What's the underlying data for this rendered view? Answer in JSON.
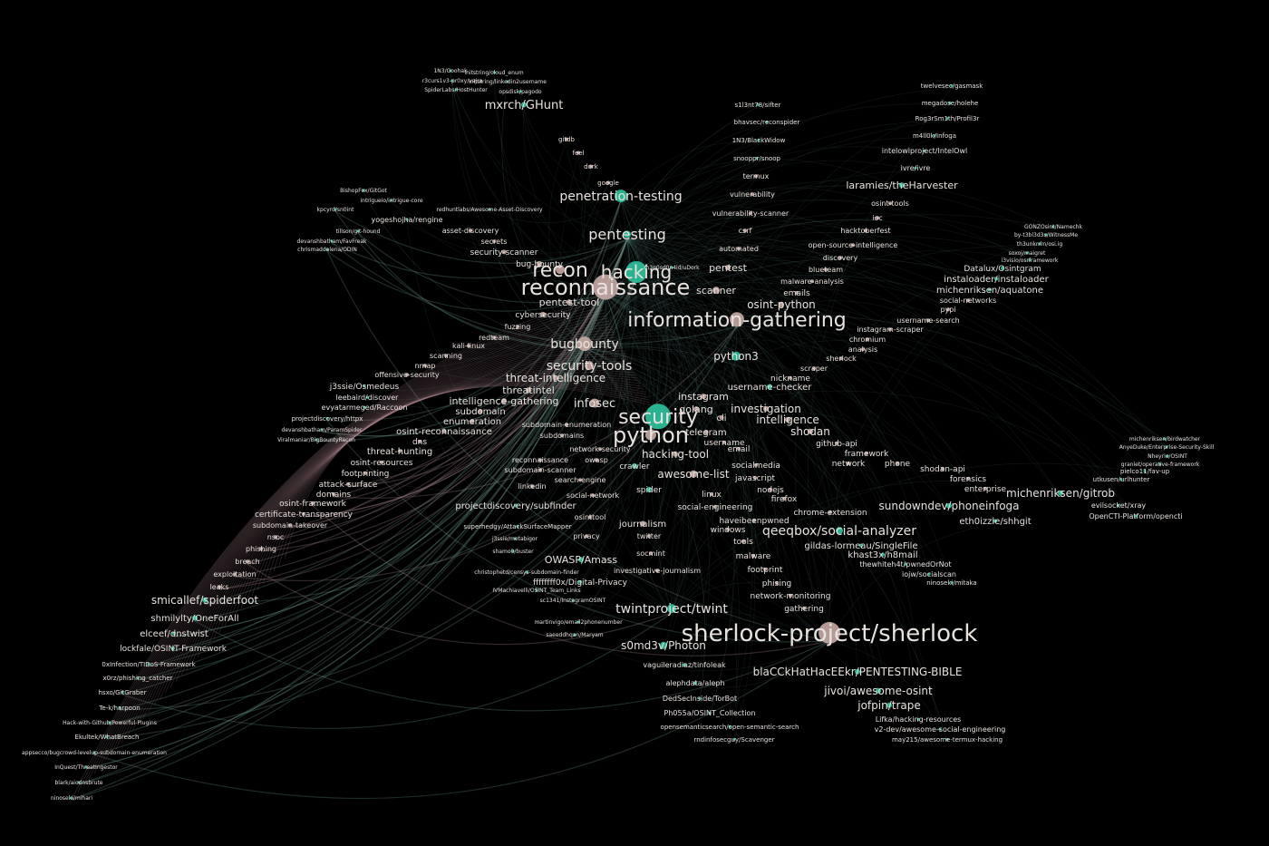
{
  "colors": {
    "background": "#000000",
    "repo": "#2ec4a0",
    "topic": "#c8aaa4",
    "edge": "#5f8a7d",
    "label": "#e8e2de"
  },
  "nodes": [
    {
      "id": "1N3/Goohak",
      "kind": "repo"
    },
    {
      "id": "r3curs1v3-pr0xy/vajra",
      "kind": "repo"
    },
    {
      "id": "SpiderLabs/HostHunter",
      "kind": "repo"
    },
    {
      "id": "initstring/cloud_enum",
      "kind": "repo"
    },
    {
      "id": "initstring/linkedin2username",
      "kind": "repo"
    },
    {
      "id": "opsdisk/pagodo",
      "kind": "repo"
    },
    {
      "id": "mxrch/GHunt",
      "kind": "repo"
    },
    {
      "id": "gitdb",
      "kind": "topic"
    },
    {
      "id": "feel",
      "kind": "topic"
    },
    {
      "id": "dork",
      "kind": "topic"
    },
    {
      "id": "google",
      "kind": "topic"
    },
    {
      "id": "penetration-testing",
      "kind": "repo"
    },
    {
      "id": "pentesting",
      "kind": "repo"
    },
    {
      "id": "BishopFox/GitGot",
      "kind": "repo"
    },
    {
      "id": "intrigueio/intrigue-core",
      "kind": "repo"
    },
    {
      "id": "redhuntlabs/Awesome-Asset-Discovery",
      "kind": "repo"
    },
    {
      "id": "kpcyrd/sn0int",
      "kind": "repo"
    },
    {
      "id": "yogeshojha/rengine",
      "kind": "repo"
    },
    {
      "id": "asset-discovery",
      "kind": "topic"
    },
    {
      "id": "tillson/git-hound",
      "kind": "repo"
    },
    {
      "id": "devanshbatham/FavFreak",
      "kind": "repo"
    },
    {
      "id": "chrismaddalena/ODIN",
      "kind": "repo"
    },
    {
      "id": "secrets",
      "kind": "topic"
    },
    {
      "id": "security-scanner",
      "kind": "topic"
    },
    {
      "id": "bug-bounty",
      "kind": "topic"
    },
    {
      "id": "recon",
      "kind": "topic"
    },
    {
      "id": "hacking",
      "kind": "repo"
    },
    {
      "id": "reconnaissance",
      "kind": "topic"
    },
    {
      "id": "pentest-tool",
      "kind": "topic"
    },
    {
      "id": "cybersecurity",
      "kind": "topic"
    },
    {
      "id": "fuzzing",
      "kind": "topic"
    },
    {
      "id": "redteam",
      "kind": "topic"
    },
    {
      "id": "kali-linux",
      "kind": "topic"
    },
    {
      "id": "scanning",
      "kind": "topic"
    },
    {
      "id": "nmap",
      "kind": "topic"
    },
    {
      "id": "offensive-security",
      "kind": "topic"
    },
    {
      "id": "j3ssie/Osmedeus",
      "kind": "repo"
    },
    {
      "id": "leebaird/discover",
      "kind": "repo"
    },
    {
      "id": "evyatarmeged/Raccoon",
      "kind": "repo"
    },
    {
      "id": "projectdiscovery/httpx",
      "kind": "repo"
    },
    {
      "id": "devanshbatham/ParamSpider",
      "kind": "repo"
    },
    {
      "id": "Viralmaniar/BigBountyRecon",
      "kind": "repo"
    },
    {
      "id": "bugbounty",
      "kind": "topic"
    },
    {
      "id": "security-tools",
      "kind": "topic"
    },
    {
      "id": "threat-intelligence",
      "kind": "topic"
    },
    {
      "id": "threatintel",
      "kind": "topic"
    },
    {
      "id": "intelligence-gathering",
      "kind": "topic"
    },
    {
      "id": "infosec",
      "kind": "topic"
    },
    {
      "id": "subdomain",
      "kind": "topic"
    },
    {
      "id": "enumeration",
      "kind": "topic"
    },
    {
      "id": "osint-reconnaissance",
      "kind": "topic"
    },
    {
      "id": "dns",
      "kind": "topic"
    },
    {
      "id": "threat-hunting",
      "kind": "topic"
    },
    {
      "id": "osint-resources",
      "kind": "topic"
    },
    {
      "id": "footprinting",
      "kind": "topic"
    },
    {
      "id": "attack-surface",
      "kind": "topic"
    },
    {
      "id": "domains",
      "kind": "topic"
    },
    {
      "id": "osint-framework",
      "kind": "topic"
    },
    {
      "id": "certificate-transparency",
      "kind": "topic"
    },
    {
      "id": "subdomain-takeover",
      "kind": "topic"
    },
    {
      "id": "nsoc",
      "kind": "topic"
    },
    {
      "id": "phishing",
      "kind": "topic"
    },
    {
      "id": "breach",
      "kind": "topic"
    },
    {
      "id": "exploitation",
      "kind": "topic"
    },
    {
      "id": "leaks",
      "kind": "topic"
    },
    {
      "id": "smicallef/spiderfoot",
      "kind": "repo"
    },
    {
      "id": "shmilylty/OneForAll",
      "kind": "repo"
    },
    {
      "id": "elceef/dnstwist",
      "kind": "repo"
    },
    {
      "id": "lockfale/OSINT-Framework",
      "kind": "repo"
    },
    {
      "id": "0xInfection/TIDoS-Framework",
      "kind": "repo"
    },
    {
      "id": "x0rz/phishing_catcher",
      "kind": "repo"
    },
    {
      "id": "hsxo/GitGraber",
      "kind": "repo"
    },
    {
      "id": "Te-k/harpoon",
      "kind": "repo"
    },
    {
      "id": "Hack-with-Github/Powerful-Plugins",
      "kind": "repo"
    },
    {
      "id": "Ekultek/WhatBreach",
      "kind": "repo"
    },
    {
      "id": "appsecco/bugcrowd-levelup-subdomain-enumeration",
      "kind": "repo"
    },
    {
      "id": "InQuest/ThreatIngestor",
      "kind": "repo"
    },
    {
      "id": "blark/aiodnsbrute",
      "kind": "repo"
    },
    {
      "id": "ninoseki/mihari",
      "kind": "repo"
    },
    {
      "id": "subdomain-enumeration",
      "kind": "topic"
    },
    {
      "id": "subdomains",
      "kind": "topic"
    },
    {
      "id": "network-security",
      "kind": "topic"
    },
    {
      "id": "reconnaissance ",
      "kind": "topic"
    },
    {
      "id": "subdomain-scanner",
      "kind": "topic"
    },
    {
      "id": "owasp",
      "kind": "topic"
    },
    {
      "id": "search-engine",
      "kind": "topic"
    },
    {
      "id": "linkedin",
      "kind": "topic"
    },
    {
      "id": "social-network",
      "kind": "topic"
    },
    {
      "id": "crawler",
      "kind": "repo"
    },
    {
      "id": "spider",
      "kind": "repo"
    },
    {
      "id": "projectdiscovery/subfinder",
      "kind": "repo"
    },
    {
      "id": "superhedgy/AttackSurfaceMapper",
      "kind": "repo"
    },
    {
      "id": "osinttool",
      "kind": "topic"
    },
    {
      "id": "privacy",
      "kind": "topic"
    },
    {
      "id": "j3ssie/metabigor",
      "kind": "repo"
    },
    {
      "id": "shamo0/buster",
      "kind": "repo"
    },
    {
      "id": "OWASP/Amass",
      "kind": "repo"
    },
    {
      "id": "ffffffff0x/Digital-Privacy",
      "kind": "repo"
    },
    {
      "id": "christophetd/censys-subdomain-finder",
      "kind": "repo"
    },
    {
      "id": "IVMachiavelli/OSINT_Team_Links",
      "kind": "repo"
    },
    {
      "id": "sc1341/InstagramOSINT",
      "kind": "repo"
    },
    {
      "id": "martinvigo/email2phonenumber",
      "kind": "repo"
    },
    {
      "id": "saeeddhqan/Maryam",
      "kind": "repo"
    },
    {
      "id": "journalism",
      "kind": "topic"
    },
    {
      "id": "twitter",
      "kind": "topic"
    },
    {
      "id": "socmint",
      "kind": "topic"
    },
    {
      "id": "investigative-journalism",
      "kind": "topic"
    },
    {
      "id": "twintproject/twint",
      "kind": "repo"
    },
    {
      "id": "s0md3v/Photon",
      "kind": "repo"
    },
    {
      "id": "sherlock-project/sherlock",
      "kind": "topic"
    },
    {
      "id": "vaguileradiaz/tinfoleak",
      "kind": "repo"
    },
    {
      "id": "alephdata/aleph",
      "kind": "repo"
    },
    {
      "id": "DedSecInside/TorBot",
      "kind": "repo"
    },
    {
      "id": "Ph055a/OSINT_Collection",
      "kind": "repo"
    },
    {
      "id": "opensemanticsearch/open-semantic-search",
      "kind": "repo"
    },
    {
      "id": "rndinfosecguy/Scavenger",
      "kind": "repo"
    },
    {
      "id": "blaCCkHatHacEEkr/PENTESTING-BIBLE",
      "kind": "repo"
    },
    {
      "id": "jivoi/awesome-osint",
      "kind": "repo"
    },
    {
      "id": "jofpin/trape",
      "kind": "repo"
    },
    {
      "id": "Lifka/hacking-resources",
      "kind": "repo"
    },
    {
      "id": "v2-dev/awesome-social-engineering",
      "kind": "repo"
    },
    {
      "id": "may215/awesome-termux-hacking",
      "kind": "repo"
    },
    {
      "id": "security",
      "kind": "repo"
    },
    {
      "id": "python",
      "kind": "topic"
    },
    {
      "id": "golang",
      "kind": "topic"
    },
    {
      "id": "instagram",
      "kind": "topic"
    },
    {
      "id": "cli",
      "kind": "topic"
    },
    {
      "id": "telegram",
      "kind": "topic"
    },
    {
      "id": "hacking-tool",
      "kind": "topic"
    },
    {
      "id": "username",
      "kind": "topic"
    },
    {
      "id": "email",
      "kind": "topic"
    },
    {
      "id": "awesome-list",
      "kind": "topic"
    },
    {
      "id": "socialmedia",
      "kind": "topic"
    },
    {
      "id": "javascript",
      "kind": "topic"
    },
    {
      "id": "nodejs",
      "kind": "topic"
    },
    {
      "id": "firefox",
      "kind": "topic"
    },
    {
      "id": "linux",
      "kind": "topic"
    },
    {
      "id": "social-engineering",
      "kind": "topic"
    },
    {
      "id": "haveibeenpwned",
      "kind": "topic"
    },
    {
      "id": "windows",
      "kind": "topic"
    },
    {
      "id": "tools",
      "kind": "topic"
    },
    {
      "id": "malware",
      "kind": "topic"
    },
    {
      "id": "footprint",
      "kind": "topic"
    },
    {
      "id": "phising",
      "kind": "topic"
    },
    {
      "id": "network-monitoring",
      "kind": "topic"
    },
    {
      "id": "gathering",
      "kind": "topic"
    },
    {
      "id": "qeeqbox/social-analyzer",
      "kind": "repo"
    },
    {
      "id": "gildas-lormeau/SingleFile",
      "kind": "repo"
    },
    {
      "id": "khast3x/h8mail",
      "kind": "repo"
    },
    {
      "id": "thewhiteh4t/pwnedOrNot",
      "kind": "repo"
    },
    {
      "id": "iojw/socialscan",
      "kind": "repo"
    },
    {
      "id": "ninoseki/mitaka",
      "kind": "repo"
    },
    {
      "id": "chrome-extension",
      "kind": "topic"
    },
    {
      "id": "investigation",
      "kind": "topic"
    },
    {
      "id": "intelligence",
      "kind": "topic"
    },
    {
      "id": "shodan",
      "kind": "topic"
    },
    {
      "id": "github-api",
      "kind": "topic"
    },
    {
      "id": "framework",
      "kind": "topic"
    },
    {
      "id": "phone",
      "kind": "topic"
    },
    {
      "id": "network",
      "kind": "topic"
    },
    {
      "id": "shodan-api",
      "kind": "topic"
    },
    {
      "id": "forensics",
      "kind": "topic"
    },
    {
      "id": "enterprise",
      "kind": "topic"
    },
    {
      "id": "sundowndev/phoneinfoga",
      "kind": "repo"
    },
    {
      "id": "michenriksen/gitrob",
      "kind": "repo"
    },
    {
      "id": "eth0izzle/shhgit",
      "kind": "repo"
    },
    {
      "id": "michenriksen/birdwatcher",
      "kind": "repo"
    },
    {
      "id": "AnyeDuke/Enterprise-Security-Skill",
      "kind": "repo"
    },
    {
      "id": "Nheyrio/OSINT",
      "kind": "repo"
    },
    {
      "id": "graniet/operative-framework",
      "kind": "repo"
    },
    {
      "id": "pielco11/fav-up",
      "kind": "repo"
    },
    {
      "id": "utkusen/urlhunter",
      "kind": "repo"
    },
    {
      "id": "evilsocket/xray",
      "kind": "repo"
    },
    {
      "id": "OpenCTI-Platform/opencti",
      "kind": "repo"
    },
    {
      "id": "python3",
      "kind": "repo"
    },
    {
      "id": "nickname",
      "kind": "topic"
    },
    {
      "id": "username-checker",
      "kind": "repo"
    },
    {
      "id": "scraper",
      "kind": "topic"
    },
    {
      "id": "sherlock",
      "kind": "topic"
    },
    {
      "id": "analysis",
      "kind": "topic"
    },
    {
      "id": "chromium",
      "kind": "topic"
    },
    {
      "id": "instagram-scraper",
      "kind": "topic"
    },
    {
      "id": "username-search",
      "kind": "topic"
    },
    {
      "id": "pypi",
      "kind": "topic"
    },
    {
      "id": "social-networks",
      "kind": "topic"
    },
    {
      "id": "information-gathering",
      "kind": "topic"
    },
    {
      "id": "osint-python",
      "kind": "topic"
    },
    {
      "id": "emails",
      "kind": "topic"
    },
    {
      "id": "malware-analysis",
      "kind": "topic"
    },
    {
      "id": "blueteam",
      "kind": "topic"
    },
    {
      "id": "discovery",
      "kind": "topic"
    },
    {
      "id": "open-source-intelligence",
      "kind": "topic"
    },
    {
      "id": "hacktoberfest",
      "kind": "topic"
    },
    {
      "id": "ioc",
      "kind": "topic"
    },
    {
      "id": "osint-tools",
      "kind": "topic"
    },
    {
      "id": "laramies/theHarvester",
      "kind": "repo"
    },
    {
      "id": "ivre/ivre",
      "kind": "repo"
    },
    {
      "id": "intelowlproject/IntelOwl",
      "kind": "repo"
    },
    {
      "id": "m4ll0k/Infoga",
      "kind": "repo"
    },
    {
      "id": "Rog3rSm1th/Profil3r",
      "kind": "repo"
    },
    {
      "id": "megadose/holehe",
      "kind": "repo"
    },
    {
      "id": "twelvesec/gasmask",
      "kind": "repo"
    },
    {
      "id": "s1l3nt78/sifter",
      "kind": "repo"
    },
    {
      "id": "bhavsec/reconspider",
      "kind": "repo"
    },
    {
      "id": "1N3/BlackWidow",
      "kind": "repo"
    },
    {
      "id": "snooppr/snoop",
      "kind": "repo"
    },
    {
      "id": "termux",
      "kind": "topic"
    },
    {
      "id": "vulnerability",
      "kind": "topic"
    },
    {
      "id": "vulnerability-scanner",
      "kind": "topic"
    },
    {
      "id": "csrf",
      "kind": "topic"
    },
    {
      "id": "automated",
      "kind": "topic"
    },
    {
      "id": "pentest",
      "kind": "topic"
    },
    {
      "id": "scanner",
      "kind": "topic"
    },
    {
      "id": "m3n0sd0n4ld/uDork",
      "kind": "repo"
    },
    {
      "id": "GONZOsint/Namechk",
      "kind": "repo"
    },
    {
      "id": "by-t3bl3d3s/WitnessMe",
      "kind": "repo"
    },
    {
      "id": "th3unkn0n/osi.ig",
      "kind": "repo"
    },
    {
      "id": "soxoj/maigret",
      "kind": "repo"
    },
    {
      "id": "i3visio/osrframework",
      "kind": "repo"
    },
    {
      "id": "Datalux/Osintgram",
      "kind": "repo"
    },
    {
      "id": "instaloader/instaloader",
      "kind": "repo"
    },
    {
      "id": "michenriksen/aquatone",
      "kind": "repo"
    }
  ]
}
